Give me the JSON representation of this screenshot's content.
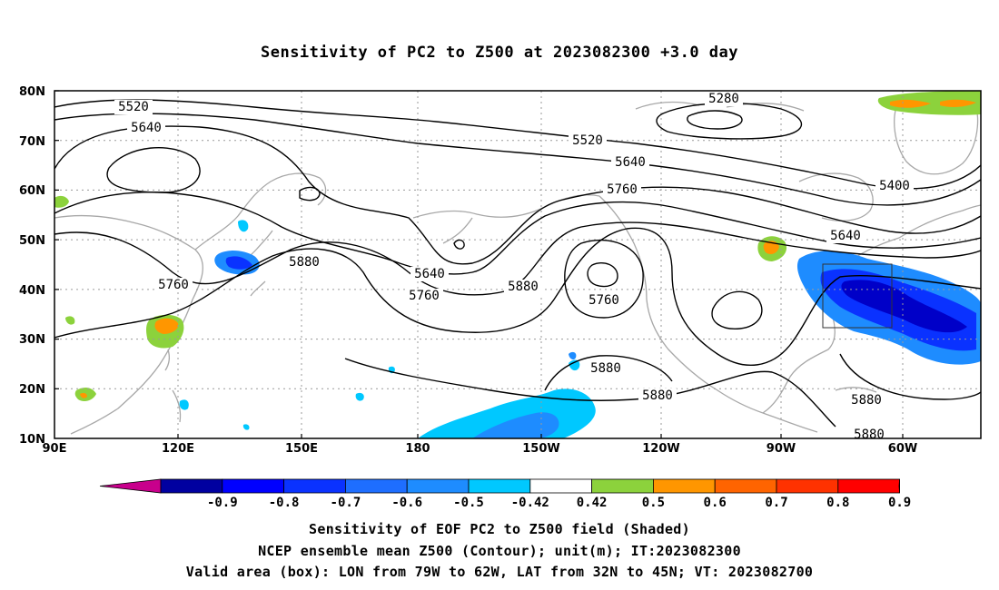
{
  "title": "Sensitivity of PC2 to Z500 at 2023082300 +3.0 day",
  "map": {
    "lon_labels": [
      "90E",
      "120E",
      "150E",
      "180",
      "150W",
      "120W",
      "90W",
      "60W"
    ],
    "lat_labels": [
      "80N",
      "70N",
      "60N",
      "50N",
      "40N",
      "30N",
      "20N",
      "10N"
    ],
    "contour_labels": [
      "5280",
      "5520",
      "5520",
      "5640",
      "5640",
      "5640",
      "5640",
      "5400",
      "5760",
      "5760",
      "5760",
      "5760",
      "5880",
      "5880",
      "5880",
      "5880",
      "5880",
      "5880"
    ],
    "box": {
      "lon_from": "79W",
      "lon_to": "62W",
      "lat_from": "32N",
      "lat_to": "45N"
    },
    "colors": {
      "blue_dark": "#0000c8",
      "blue": "#0a32ff",
      "blue_mid": "#1e8cff",
      "cyan": "#00c8ff",
      "green": "#8cd23c",
      "orange": "#ff9600"
    }
  },
  "colorbar": {
    "labels": [
      "-0.9",
      "-0.8",
      "-0.7",
      "-0.6",
      "-0.5",
      "-0.42",
      "0.42",
      "0.5",
      "0.6",
      "0.7",
      "0.8",
      "0.9"
    ],
    "colors": [
      "#0000a0",
      "#0000ff",
      "#0a32ff",
      "#1e6eff",
      "#1e8cff",
      "#00c8ff",
      "#ffffff",
      "#8cd23c",
      "#ff9600",
      "#ff6400",
      "#ff3200",
      "#ff0000"
    ],
    "low_extend_color": "#c8008c",
    "high_extend_color": "#ffa0c8"
  },
  "captions": {
    "line1": "Sensitivity of EOF PC2 to Z500 field (Shaded)",
    "line2": "NCEP ensemble mean Z500 (Contour); unit(m); IT:2023082300",
    "line3": "Valid area (box): LON from 79W to 62W, LAT from 32N to 45N; VT: 2023082700"
  }
}
